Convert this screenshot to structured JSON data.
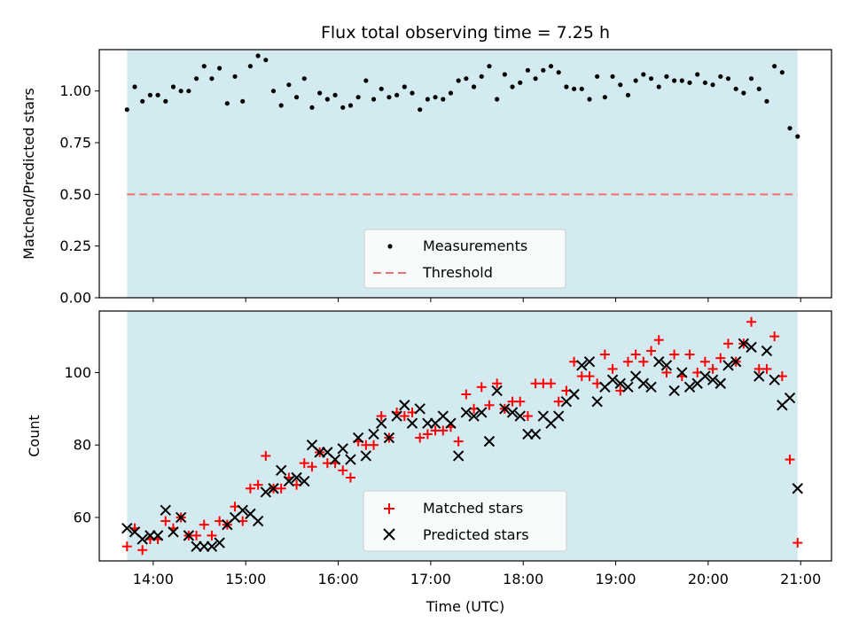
{
  "chart_data": [
    {
      "type": "scatter",
      "title": "Flux total observing time = 7.25 h",
      "ylabel": "Matched/Predicted stars",
      "ylim": [
        0,
        1.2
      ],
      "yticks": [
        0.0,
        0.25,
        0.5,
        0.75,
        1.0
      ],
      "ytick_labels": [
        "0.00",
        "0.25",
        "0.50",
        "0.75",
        "1.00"
      ],
      "shade_color": "#d4eaf1",
      "series": [
        {
          "name": "Measurements",
          "marker": "dot",
          "color": "#000000",
          "x": [
            "13:43",
            "13:48",
            "13:53",
            "13:58",
            "14:03",
            "14:08",
            "14:13",
            "14:18",
            "14:23",
            "14:28",
            "14:33",
            "14:38",
            "14:43",
            "14:48",
            "14:53",
            "14:58",
            "15:03",
            "15:08",
            "15:13",
            "15:18",
            "15:23",
            "15:28",
            "15:33",
            "15:38",
            "15:43",
            "15:48",
            "15:53",
            "15:58",
            "16:03",
            "16:08",
            "16:13",
            "16:18",
            "16:23",
            "16:28",
            "16:33",
            "16:38",
            "16:43",
            "16:48",
            "16:53",
            "16:58",
            "17:03",
            "17:08",
            "17:13",
            "17:18",
            "17:23",
            "17:28",
            "17:33",
            "17:38",
            "17:43",
            "17:48",
            "17:53",
            "17:58",
            "18:03",
            "18:08",
            "18:13",
            "18:18",
            "18:23",
            "18:28",
            "18:33",
            "18:38",
            "18:43",
            "18:48",
            "18:53",
            "18:58",
            "19:03",
            "19:08",
            "19:13",
            "19:18",
            "19:23",
            "19:28",
            "19:33",
            "19:38",
            "19:43",
            "19:48",
            "19:53",
            "19:58",
            "20:03",
            "20:08",
            "20:13",
            "20:18",
            "20:23",
            "20:28",
            "20:33",
            "20:38",
            "20:43",
            "20:48",
            "20:53",
            "20:58"
          ],
          "y": [
            0.91,
            1.02,
            0.95,
            0.98,
            0.98,
            0.95,
            1.02,
            1.0,
            1.0,
            1.06,
            1.12,
            1.06,
            1.11,
            0.94,
            1.07,
            0.95,
            1.12,
            1.17,
            1.15,
            1.0,
            0.93,
            1.03,
            0.97,
            1.06,
            0.92,
            0.99,
            0.96,
            0.98,
            0.92,
            0.93,
            0.97,
            1.05,
            0.96,
            1.01,
            0.97,
            0.98,
            1.02,
            0.99,
            0.91,
            0.96,
            0.97,
            0.96,
            0.99,
            1.05,
            1.06,
            1.02,
            1.07,
            1.12,
            0.96,
            1.08,
            1.02,
            1.04,
            1.1,
            1.06,
            1.1,
            1.12,
            1.09,
            1.02,
            1.01,
            1.01,
            0.96,
            1.07,
            0.97,
            1.07,
            1.03,
            0.98,
            1.05,
            1.08,
            1.06,
            1.02,
            1.07,
            1.05,
            1.05,
            1.04,
            1.08,
            1.04,
            1.03,
            1.07,
            1.06,
            1.01,
            0.99,
            1.06,
            1.01,
            0.95,
            1.12,
            1.09,
            0.82,
            0.78
          ]
        },
        {
          "name": "Threshold",
          "marker": "dashed-line",
          "color": "#f07070",
          "x": [
            "13:43",
            "20:58"
          ],
          "y": [
            0.5,
            0.5
          ]
        }
      ]
    },
    {
      "type": "scatter",
      "title": "",
      "xlabel": "Time (UTC)",
      "ylabel": "Count",
      "ylim": [
        48,
        117
      ],
      "yticks": [
        60,
        80,
        100
      ],
      "ytick_labels": [
        "60",
        "80",
        "100"
      ],
      "xlim": [
        "13:25",
        "21:20"
      ],
      "xticks": [
        "14:00",
        "15:00",
        "16:00",
        "17:00",
        "18:00",
        "19:00",
        "20:00",
        "21:00"
      ],
      "shade_color": "#d4eaf1",
      "series": [
        {
          "name": "Matched stars",
          "marker": "plus",
          "color": "#ff0000",
          "x": [
            "13:43",
            "13:48",
            "13:53",
            "13:58",
            "14:03",
            "14:08",
            "14:13",
            "14:18",
            "14:23",
            "14:28",
            "14:33",
            "14:38",
            "14:43",
            "14:48",
            "14:53",
            "14:58",
            "15:03",
            "15:08",
            "15:13",
            "15:18",
            "15:23",
            "15:28",
            "15:33",
            "15:38",
            "15:43",
            "15:48",
            "15:53",
            "15:58",
            "16:03",
            "16:08",
            "16:13",
            "16:18",
            "16:23",
            "16:28",
            "16:33",
            "16:38",
            "16:43",
            "16:48",
            "16:53",
            "16:58",
            "17:03",
            "17:08",
            "17:13",
            "17:18",
            "17:23",
            "17:28",
            "17:33",
            "17:38",
            "17:43",
            "17:48",
            "17:53",
            "17:58",
            "18:03",
            "18:08",
            "18:13",
            "18:18",
            "18:23",
            "18:28",
            "18:33",
            "18:38",
            "18:43",
            "18:48",
            "18:53",
            "18:58",
            "19:03",
            "19:08",
            "19:13",
            "19:18",
            "19:23",
            "19:28",
            "19:33",
            "19:38",
            "19:43",
            "19:48",
            "19:53",
            "19:58",
            "20:03",
            "20:08",
            "20:13",
            "20:18",
            "20:23",
            "20:28",
            "20:33",
            "20:38",
            "20:43",
            "20:48",
            "20:53",
            "20:58"
          ],
          "y": [
            52,
            57,
            51,
            54,
            54,
            59,
            57,
            60,
            55,
            55,
            58,
            55,
            59,
            58,
            63,
            59,
            68,
            69,
            77,
            68,
            68,
            71,
            69,
            75,
            74,
            78,
            75,
            75,
            73,
            71,
            81,
            80,
            80,
            88,
            82,
            89,
            88,
            89,
            82,
            83,
            84,
            84,
            85,
            81,
            94,
            90,
            96,
            91,
            97,
            90,
            92,
            92,
            88,
            97,
            97,
            97,
            92,
            95,
            103,
            99,
            99,
            97,
            105,
            101,
            95,
            103,
            105,
            103,
            106,
            109,
            100,
            105,
            99,
            105,
            100,
            103,
            101,
            104,
            108,
            103,
            108,
            114,
            101,
            101,
            110,
            99,
            76,
            53
          ]
        },
        {
          "name": "Predicted stars",
          "marker": "x",
          "color": "#000000",
          "x": [
            "13:43",
            "13:48",
            "13:53",
            "13:58",
            "14:03",
            "14:08",
            "14:13",
            "14:18",
            "14:23",
            "14:28",
            "14:33",
            "14:38",
            "14:43",
            "14:48",
            "14:53",
            "14:58",
            "15:03",
            "15:08",
            "15:13",
            "15:18",
            "15:23",
            "15:28",
            "15:33",
            "15:38",
            "15:43",
            "15:48",
            "15:53",
            "15:58",
            "16:03",
            "16:08",
            "16:13",
            "16:18",
            "16:23",
            "16:28",
            "16:33",
            "16:38",
            "16:43",
            "16:48",
            "16:53",
            "16:58",
            "17:03",
            "17:08",
            "17:13",
            "17:18",
            "17:23",
            "17:28",
            "17:33",
            "17:38",
            "17:43",
            "17:48",
            "17:53",
            "17:58",
            "18:03",
            "18:08",
            "18:13",
            "18:18",
            "18:23",
            "18:28",
            "18:33",
            "18:38",
            "18:43",
            "18:48",
            "18:53",
            "18:58",
            "19:03",
            "19:08",
            "19:13",
            "19:18",
            "19:23",
            "19:28",
            "19:33",
            "19:38",
            "19:43",
            "19:48",
            "19:53",
            "19:58",
            "20:03",
            "20:08",
            "20:13",
            "20:18",
            "20:23",
            "20:28",
            "20:33",
            "20:38",
            "20:43",
            "20:48",
            "20:53",
            "20:58"
          ],
          "y": [
            57,
            56,
            54,
            55,
            55,
            62,
            56,
            60,
            55,
            52,
            52,
            52,
            53,
            58,
            60,
            62,
            61,
            59,
            67,
            68,
            73,
            70,
            71,
            70,
            80,
            78,
            78,
            76,
            79,
            76,
            82,
            77,
            83,
            86,
            82,
            88,
            91,
            86,
            90,
            86,
            86,
            88,
            86,
            77,
            89,
            88,
            89,
            81,
            95,
            90,
            89,
            88,
            83,
            83,
            88,
            86,
            88,
            92,
            94,
            102,
            103,
            92,
            96,
            98,
            97,
            96,
            99,
            97,
            96,
            103,
            102,
            95,
            100,
            96,
            97,
            99,
            98,
            97,
            102,
            103,
            108,
            107,
            99,
            106,
            98,
            91,
            93,
            68
          ]
        }
      ]
    }
  ]
}
